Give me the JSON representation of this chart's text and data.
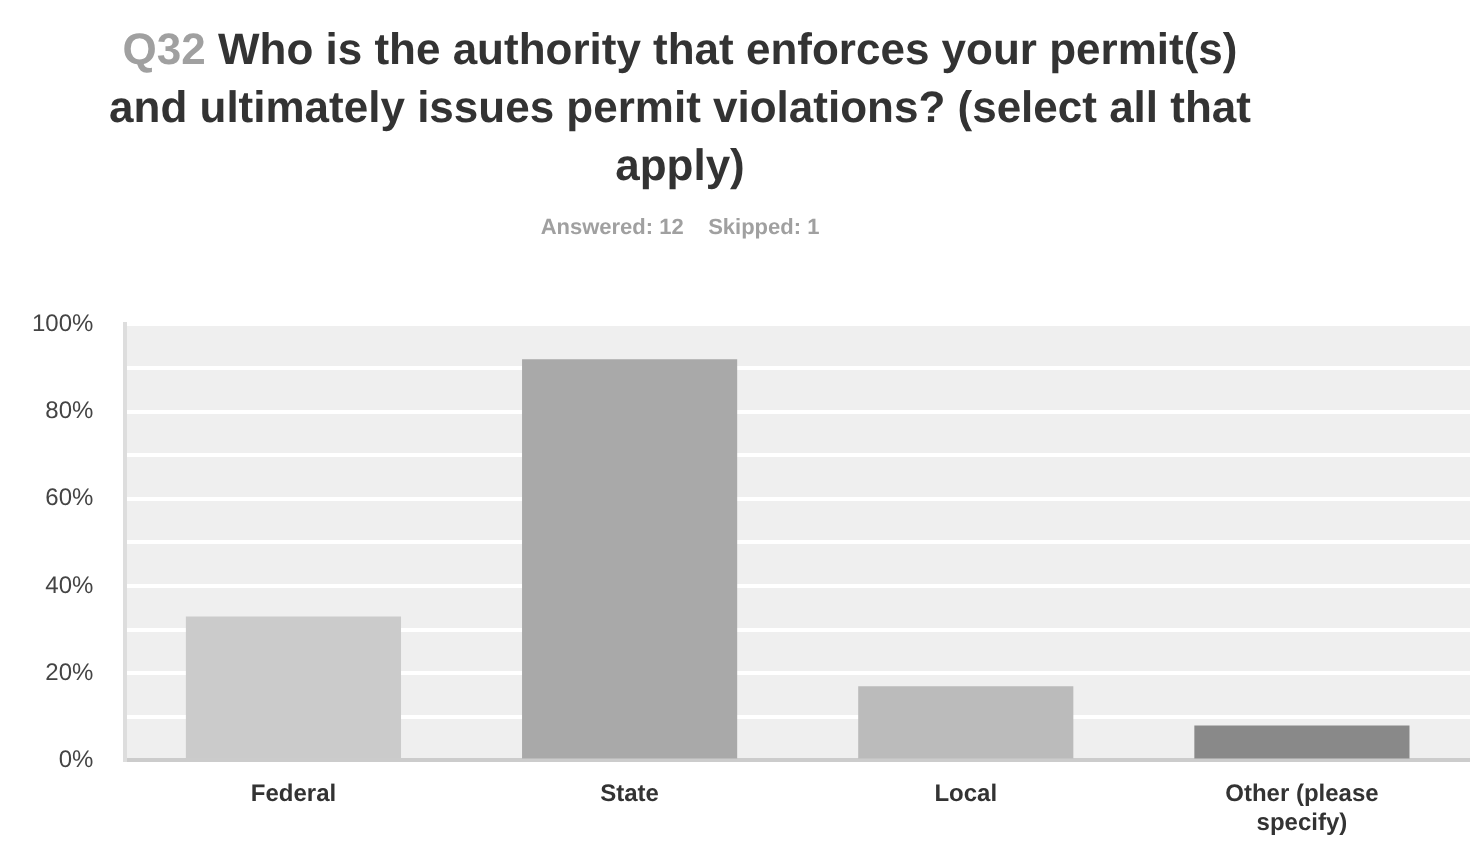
{
  "chart_data": {
    "type": "bar",
    "title": "Q32 Who is the authority that enforces your permit(s) and ultimately issues permit violations? (select all that apply)",
    "subtitle": "Answered: 12    Skipped: 1",
    "categories": [
      "Federal",
      "State",
      "Local",
      "Other (please specify)"
    ],
    "values": [
      33,
      92,
      17,
      8
    ],
    "colors": [
      "#cbcbcb",
      "#a9a9a9",
      "#bbbbbb",
      "#898989"
    ],
    "ylim": [
      0,
      100
    ],
    "yticks": [
      {
        "value": 0,
        "label": "0%"
      },
      {
        "value": 10,
        "label": null
      },
      {
        "value": 20,
        "label": "20%"
      },
      {
        "value": 30,
        "label": null
      },
      {
        "value": 40,
        "label": "40%"
      },
      {
        "value": 50,
        "label": null
      },
      {
        "value": 60,
        "label": "60%"
      },
      {
        "value": 70,
        "label": null
      },
      {
        "value": 80,
        "label": "80%"
      },
      {
        "value": 90,
        "label": null
      },
      {
        "value": 100,
        "label": "100%"
      }
    ],
    "grid": "y",
    "legend": false
  }
}
